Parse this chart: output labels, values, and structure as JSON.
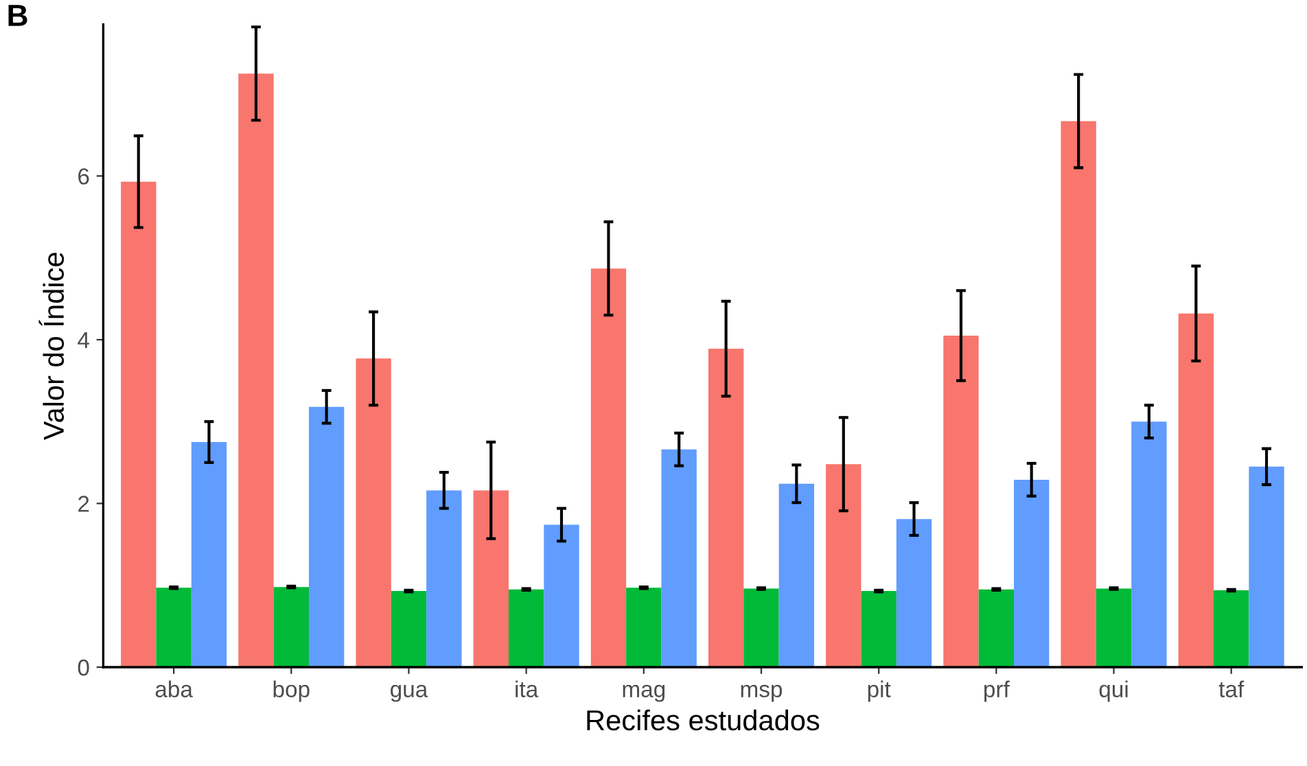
{
  "chart_data": {
    "type": "bar",
    "xlabel": "Recifes estudados",
    "ylabel": "Valor do Índice",
    "annotations": [
      "B"
    ],
    "categories": [
      "aba",
      "bop",
      "gua",
      "ita",
      "mag",
      "msp",
      "pit",
      "prf",
      "qui",
      "taf"
    ],
    "series": [
      {
        "color": "#f8766d",
        "values": [
          5.93,
          7.25,
          3.77,
          2.16,
          4.87,
          3.89,
          2.48,
          4.05,
          6.67,
          4.32
        ],
        "errors": [
          0.56,
          0.57,
          0.57,
          0.59,
          0.57,
          0.58,
          0.57,
          0.55,
          0.57,
          0.58
        ]
      },
      {
        "color": "#00ba38",
        "values": [
          0.97,
          0.98,
          0.93,
          0.95,
          0.97,
          0.96,
          0.93,
          0.95,
          0.96,
          0.94
        ],
        "errors": [
          0.01,
          0.01,
          0.01,
          0.01,
          0.01,
          0.01,
          0.01,
          0.01,
          0.01,
          0.01
        ]
      },
      {
        "color": "#619cff",
        "values": [
          2.75,
          3.18,
          2.16,
          1.74,
          2.66,
          2.24,
          1.81,
          2.29,
          3.0,
          2.45
        ],
        "errors": [
          0.25,
          0.2,
          0.22,
          0.2,
          0.2,
          0.23,
          0.2,
          0.2,
          0.2,
          0.22
        ]
      }
    ],
    "ylim": [
      0,
      7.85
    ],
    "yticks": [
      0,
      2,
      4,
      6
    ],
    "grid": false
  }
}
